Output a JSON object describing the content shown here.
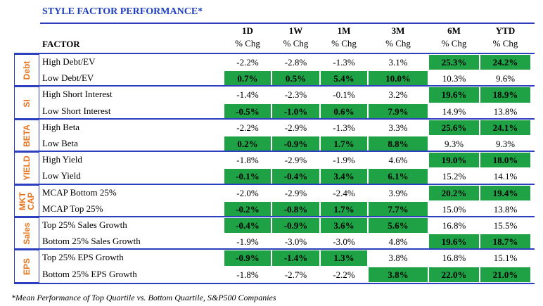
{
  "title": "STYLE FACTOR PERFORMANCE*",
  "factor_header": "FACTOR",
  "columns": [
    {
      "period": "1D",
      "unit": "% Chg"
    },
    {
      "period": "1W",
      "unit": "% Chg"
    },
    {
      "period": "1M",
      "unit": "% Chg"
    },
    {
      "period": "3M",
      "unit": "% Chg"
    },
    {
      "period": "6M",
      "unit": "% Chg"
    },
    {
      "period": "YTD",
      "unit": "% Chg"
    }
  ],
  "highlight_color": "#1fa146",
  "groups": [
    {
      "label": "Debt",
      "rows": [
        {
          "factor": "High Debt/EV",
          "values": [
            "-2.2%",
            "-2.8%",
            "-1.3%",
            "3.1%",
            "25.3%",
            "24.2%"
          ],
          "highlight": [
            false,
            false,
            false,
            false,
            true,
            true
          ]
        },
        {
          "factor": "Low Debt/EV",
          "values": [
            "0.7%",
            "0.5%",
            "5.4%",
            "10.0%",
            "10.3%",
            "9.6%"
          ],
          "highlight": [
            true,
            true,
            true,
            true,
            false,
            false
          ]
        }
      ]
    },
    {
      "label": "SI",
      "rows": [
        {
          "factor": "High Short Interest",
          "values": [
            "-1.4%",
            "-2.3%",
            "-0.1%",
            "3.2%",
            "19.6%",
            "18.9%"
          ],
          "highlight": [
            false,
            false,
            false,
            false,
            true,
            true
          ]
        },
        {
          "factor": "Low Short Interest",
          "values": [
            "-0.5%",
            "-1.0%",
            "0.6%",
            "7.9%",
            "14.9%",
            "13.8%"
          ],
          "highlight": [
            true,
            true,
            true,
            true,
            false,
            false
          ]
        }
      ]
    },
    {
      "label": "BETA",
      "rows": [
        {
          "factor": "High Beta",
          "values": [
            "-2.2%",
            "-2.9%",
            "-1.3%",
            "3.3%",
            "25.6%",
            "24.1%"
          ],
          "highlight": [
            false,
            false,
            false,
            false,
            true,
            true
          ]
        },
        {
          "factor": "Low Beta",
          "values": [
            "0.2%",
            "-0.9%",
            "1.7%",
            "8.8%",
            "9.3%",
            "9.3%"
          ],
          "highlight": [
            true,
            true,
            true,
            true,
            false,
            false
          ]
        }
      ]
    },
    {
      "label": "YIELD",
      "rows": [
        {
          "factor": "High Yield",
          "values": [
            "-1.8%",
            "-2.9%",
            "-1.9%",
            "4.6%",
            "19.0%",
            "18.0%"
          ],
          "highlight": [
            false,
            false,
            false,
            false,
            true,
            true
          ]
        },
        {
          "factor": "Low Yield",
          "values": [
            "-0.1%",
            "-0.4%",
            "3.4%",
            "6.1%",
            "15.2%",
            "14.1%"
          ],
          "highlight": [
            true,
            true,
            true,
            true,
            false,
            false
          ]
        }
      ]
    },
    {
      "label": "MKT CAP",
      "rows": [
        {
          "factor": "MCAP Bottom 25%",
          "values": [
            "-2.0%",
            "-2.9%",
            "-2.4%",
            "3.9%",
            "20.2%",
            "19.4%"
          ],
          "highlight": [
            false,
            false,
            false,
            false,
            true,
            true
          ]
        },
        {
          "factor": "MCAP Top 25%",
          "values": [
            "-0.2%",
            "-0.8%",
            "1.7%",
            "7.7%",
            "15.0%",
            "13.8%"
          ],
          "highlight": [
            true,
            true,
            true,
            true,
            false,
            false
          ]
        }
      ]
    },
    {
      "label": "Sales",
      "rows": [
        {
          "factor": "Top 25% Sales Growth",
          "values": [
            "-0.4%",
            "-0.9%",
            "3.6%",
            "5.6%",
            "16.8%",
            "15.5%"
          ],
          "highlight": [
            true,
            true,
            true,
            true,
            false,
            false
          ]
        },
        {
          "factor": "Bottom 25% Sales Growth",
          "values": [
            "-1.9%",
            "-3.0%",
            "-3.0%",
            "4.8%",
            "19.6%",
            "18.7%"
          ],
          "highlight": [
            false,
            false,
            false,
            false,
            true,
            true
          ]
        }
      ]
    },
    {
      "label": "EPS",
      "rows": [
        {
          "factor": "Top 25% EPS Growth",
          "values": [
            "-0.9%",
            "-1.4%",
            "1.3%",
            "3.8%",
            "16.8%",
            "15.1%"
          ],
          "highlight": [
            true,
            true,
            true,
            false,
            false,
            false
          ]
        },
        {
          "factor": "Bottom 25% EPS Growth",
          "values": [
            "-1.8%",
            "-2.7%",
            "-2.2%",
            "3.8%",
            "22.0%",
            "21.0%"
          ],
          "highlight": [
            false,
            false,
            false,
            true,
            true,
            true
          ]
        }
      ]
    }
  ],
  "footnote": "*Mean Performance of Top Quartile vs. Bottom Quartile, S&P500 Companies"
}
